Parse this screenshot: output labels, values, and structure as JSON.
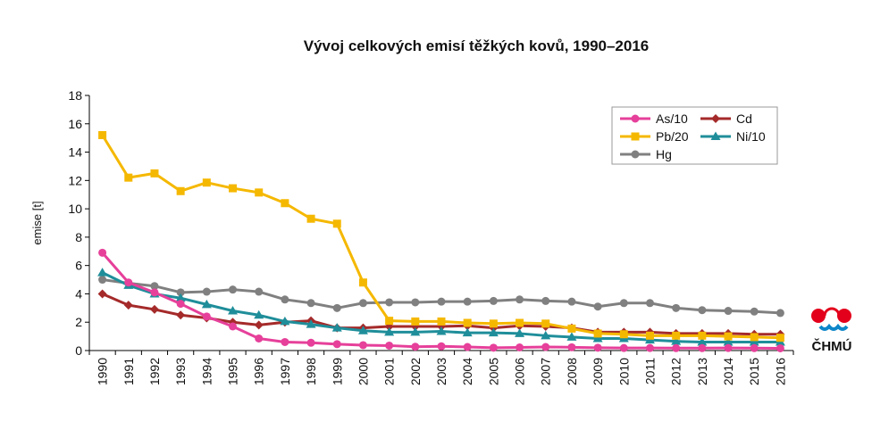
{
  "chart_data": {
    "type": "line",
    "title": "Vývoj celkových emisí těžkých kovů, 1990–2016",
    "xlabel": "",
    "ylabel": "emise  [t]",
    "ylim": [
      0,
      18
    ],
    "yticks": [
      0,
      2,
      4,
      6,
      8,
      10,
      12,
      14,
      16,
      18
    ],
    "grid": false,
    "legend_position": "top-right",
    "categories": [
      "1990",
      "1991",
      "1992",
      "1993",
      "1994",
      "1995",
      "1996",
      "1997",
      "1998",
      "1999",
      "2000",
      "2001",
      "2002",
      "2003",
      "2004",
      "2005",
      "2006",
      "2007",
      "2008",
      "2009",
      "2010",
      "2011",
      "2012",
      "2013",
      "2014",
      "2015",
      "2016"
    ],
    "series": [
      {
        "name": "As/10",
        "color": "#e6409a",
        "marker": "circle",
        "values": [
          6.9,
          4.8,
          4.1,
          3.3,
          2.4,
          1.7,
          0.85,
          0.6,
          0.55,
          0.45,
          0.38,
          0.35,
          0.27,
          0.3,
          0.25,
          0.2,
          0.22,
          0.25,
          0.23,
          0.2,
          0.18,
          0.18,
          0.17,
          0.17,
          0.18,
          0.17,
          0.16
        ]
      },
      {
        "name": "Cd",
        "color": "#a52a2a",
        "marker": "diamond",
        "values": [
          4.0,
          3.2,
          2.9,
          2.5,
          2.3,
          2.0,
          1.8,
          2.0,
          2.1,
          1.6,
          1.6,
          1.7,
          1.7,
          1.7,
          1.75,
          1.6,
          1.75,
          1.7,
          1.6,
          1.3,
          1.3,
          1.3,
          1.2,
          1.2,
          1.2,
          1.15,
          1.15
        ]
      },
      {
        "name": "Pb/20",
        "color": "#f5b800",
        "marker": "square",
        "values": [
          15.2,
          12.2,
          12.5,
          11.25,
          11.85,
          11.45,
          11.15,
          10.4,
          9.3,
          8.95,
          4.8,
          2.1,
          2.05,
          2.05,
          1.95,
          1.9,
          1.95,
          1.9,
          1.55,
          1.2,
          1.15,
          1.05,
          1.05,
          1.05,
          1.0,
          0.95,
          0.9
        ]
      },
      {
        "name": "Ni/10",
        "color": "#1f8e9a",
        "marker": "triangle",
        "values": [
          5.5,
          4.6,
          4.0,
          3.7,
          3.25,
          2.8,
          2.5,
          2.05,
          1.85,
          1.6,
          1.4,
          1.3,
          1.3,
          1.35,
          1.25,
          1.25,
          1.2,
          1.05,
          0.95,
          0.85,
          0.85,
          0.75,
          0.65,
          0.6,
          0.6,
          0.6,
          0.6
        ]
      },
      {
        "name": "Hg",
        "color": "#808080",
        "marker": "circle",
        "values": [
          5.0,
          4.75,
          4.55,
          4.1,
          4.15,
          4.3,
          4.15,
          3.6,
          3.35,
          3.0,
          3.35,
          3.4,
          3.4,
          3.45,
          3.45,
          3.5,
          3.6,
          3.5,
          3.45,
          3.1,
          3.35,
          3.35,
          3.0,
          2.85,
          2.8,
          2.75,
          2.65
        ]
      }
    ]
  },
  "logo": {
    "text": "ČHMÚ",
    "colors": {
      "red": "#e3001b",
      "blue": "#0e86c9"
    }
  }
}
